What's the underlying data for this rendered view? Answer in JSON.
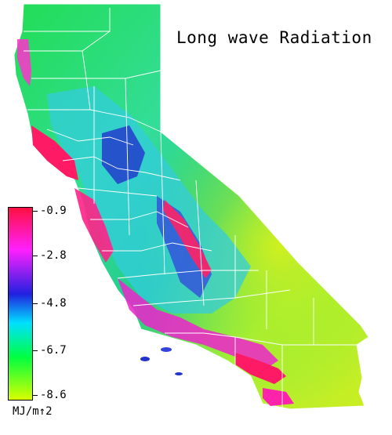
{
  "title": "Long wave Radiation",
  "legend": {
    "units": "MJ/m↑2",
    "ticks": [
      "-0.9",
      "-2.8",
      "-4.8",
      "-6.7",
      "-8.6"
    ],
    "colors": [
      "#ff1040",
      "#ff20ff",
      "#2020e0",
      "#00e0ff",
      "#00ff40",
      "#d8ff00"
    ]
  },
  "map": {
    "region": "California",
    "palette": {
      "north": "#33e633",
      "coast": "#ff1a66",
      "central": "#33cccc",
      "desert": "#ccff33",
      "county_lines": "#ffffff"
    }
  }
}
